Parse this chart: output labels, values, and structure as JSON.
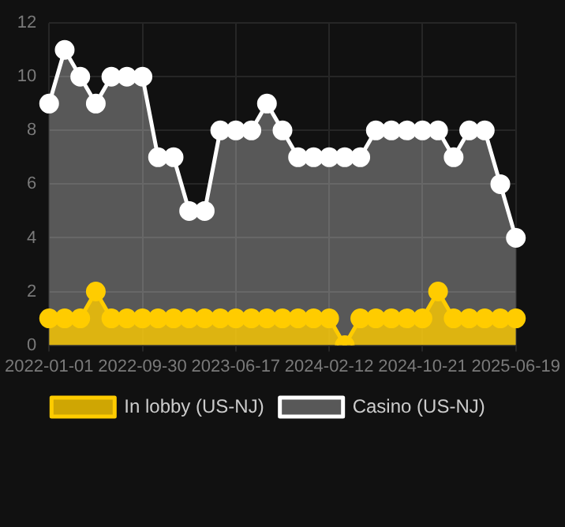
{
  "chart_data": {
    "type": "area",
    "categories": [
      "2022-01-01",
      null,
      null,
      null,
      null,
      null,
      "2022-09-30",
      null,
      null,
      null,
      null,
      null,
      "2023-06-17",
      null,
      null,
      null,
      null,
      null,
      "2024-02-12",
      null,
      null,
      null,
      null,
      null,
      "2024-10-21",
      null,
      null,
      null,
      null,
      null,
      "2025-06-19"
    ],
    "series": [
      {
        "name": "In lobby (US-NJ)",
        "color": "#ffcc00",
        "values": [
          1,
          1,
          1,
          2,
          1,
          1,
          1,
          1,
          1,
          1,
          1,
          1,
          1,
          1,
          1,
          1,
          1,
          1,
          1,
          0,
          1,
          1,
          1,
          1,
          1,
          2,
          1,
          1,
          1,
          1,
          1
        ]
      },
      {
        "name": "Casino (US-NJ)",
        "color": "#ffffff",
        "values": [
          9,
          11,
          10,
          9,
          10,
          10,
          10,
          7,
          7,
          5,
          5,
          8,
          8,
          8,
          9,
          8,
          7,
          7,
          7,
          7,
          7,
          8,
          8,
          8,
          8,
          8,
          7,
          8,
          8,
          6,
          4
        ]
      }
    ],
    "ylim": [
      0,
      12
    ],
    "yticks": [
      0,
      2,
      4,
      6,
      8,
      10,
      12
    ],
    "grid": true,
    "legend": "bottom",
    "marker": "circle"
  }
}
